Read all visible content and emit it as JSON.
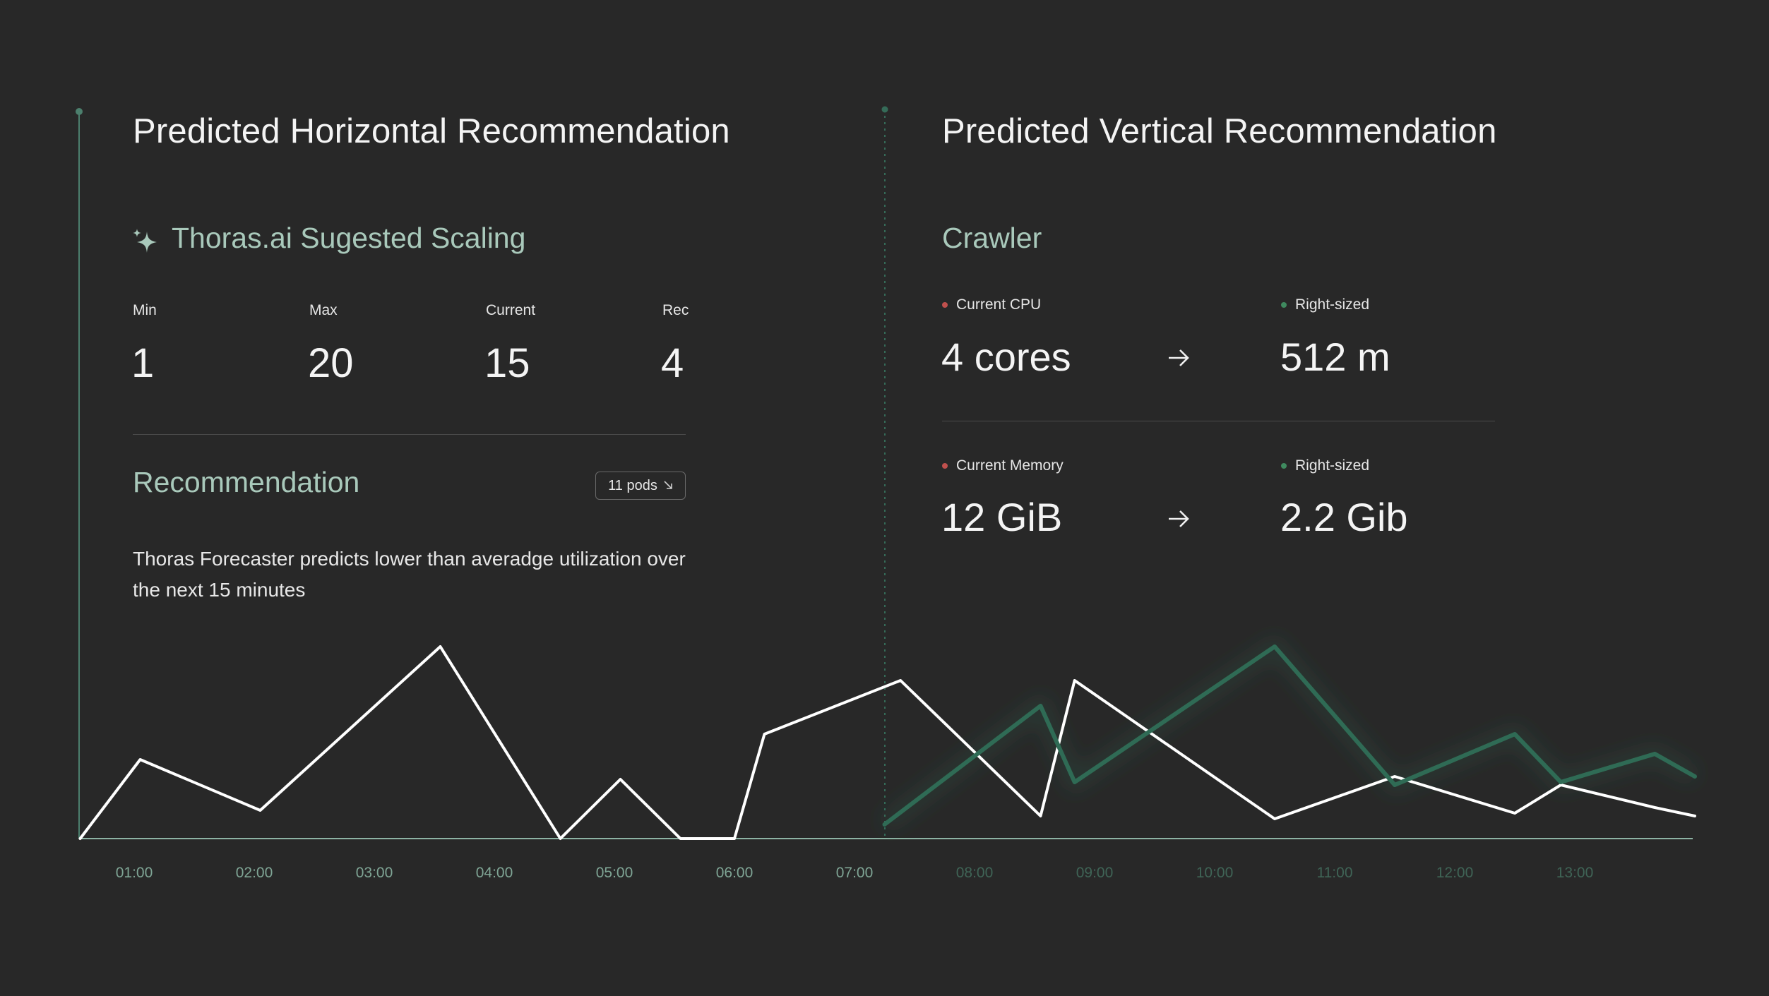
{
  "horizontal": {
    "title": "Predicted Horizontal Recommendation",
    "suggested_title": "Thoras.ai Sugested Scaling",
    "stats": [
      {
        "label": "Min",
        "value": "1"
      },
      {
        "label": "Max",
        "value": "20"
      },
      {
        "label": "Current",
        "value": "15"
      },
      {
        "label": "Rec",
        "value": "4"
      }
    ],
    "recommendation_title": "Recommendation",
    "pods_badge": "11 pods",
    "description": "Thoras Forecaster predicts lower than averadge utilization over the next 15 minutes"
  },
  "vertical": {
    "title": "Predicted Vertical Recommendation",
    "workload": "Crawler",
    "cpu": {
      "current_label": "Current CPU",
      "current_value": "4 cores",
      "rightsized_label": "Right-sized",
      "rightsized_value": "512 m"
    },
    "memory": {
      "current_label": "Current Memory",
      "current_value": "12 GiB",
      "rightsized_label": "Right-sized",
      "rightsized_value": "2.2 Gib"
    },
    "arrow_icon": "arrow-right-icon"
  },
  "colors": {
    "accent_green": "#2f6b55",
    "current_dot": "#c0504d",
    "rightsized_dot": "#3f8a5f",
    "actual_line": "#ffffff",
    "forecast_line": "#2f6b55",
    "past_tick": "#7fa595",
    "future_tick": "#3f6456"
  },
  "chart_data": {
    "type": "line",
    "x_ticks": [
      "01:00",
      "02:00",
      "03:00",
      "04:00",
      "05:00",
      "06:00",
      "07:00",
      "08:00",
      "09:00",
      "10:00",
      "11:00",
      "12:00",
      "13:00"
    ],
    "forecast_start": "07:15",
    "grid": false,
    "series": [
      {
        "role": "actual",
        "x": [
          "00:33",
          "01:03",
          "02:03",
          "03:33",
          "04:33",
          "05:03",
          "05:33",
          "06:00",
          "06:15",
          "07:23",
          "08:33",
          "08:50",
          "10:30",
          "11:30",
          "12:30",
          "12:53",
          "13:40",
          "14:00"
        ],
        "y": [
          0,
          28,
          10,
          68,
          0,
          21,
          0,
          0,
          37,
          56,
          8,
          56,
          7,
          22,
          9,
          19,
          11,
          8
        ]
      },
      {
        "role": "forecast",
        "x": [
          "07:15",
          "08:33",
          "08:50",
          "10:30",
          "11:30",
          "12:30",
          "12:53",
          "13:40",
          "14:00"
        ],
        "y": [
          5,
          47,
          20,
          68,
          19,
          37,
          20,
          30,
          22
        ]
      }
    ]
  }
}
